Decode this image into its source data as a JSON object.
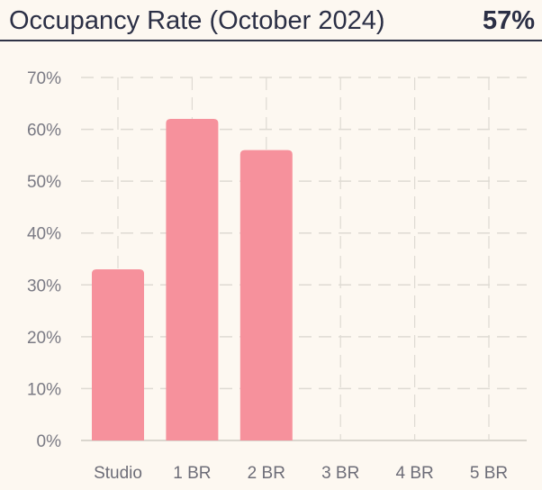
{
  "header": {
    "title": "Occupancy Rate (October 2024)",
    "summary": "57%"
  },
  "colors": {
    "background": "#fdf8f1",
    "bar": "#f6919c",
    "grid": "#dedad3",
    "text": "#2b2f45",
    "tick_text": "#7a7a84"
  },
  "chart_data": {
    "type": "bar",
    "title": "",
    "xlabel": "",
    "ylabel": "",
    "categories": [
      "Studio",
      "1 BR",
      "2 BR",
      "3 BR",
      "4 BR",
      "5 BR"
    ],
    "values": [
      33,
      62,
      56,
      0,
      0,
      0
    ],
    "ylim": [
      0,
      70
    ],
    "yticks": [
      0,
      10,
      20,
      30,
      40,
      50,
      60,
      70
    ],
    "ytick_labels": [
      "0%",
      "10%",
      "20%",
      "30%",
      "40%",
      "50%",
      "60%",
      "70%"
    ],
    "grid": true,
    "legend": "none"
  }
}
